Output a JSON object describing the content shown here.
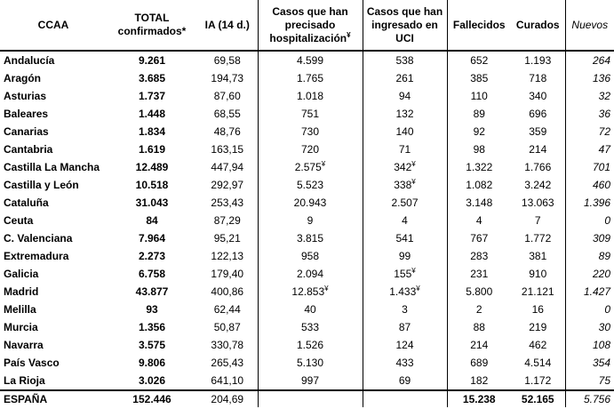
{
  "table": {
    "header": [
      "CCAA",
      "TOTAL confirmados*",
      "IA (14 d.)",
      {
        "text": "Casos que han precisado hospitalización",
        "sup": "¥"
      },
      "Casos que han ingresado en UCI",
      "Fallecidos",
      "Curados",
      "Nuevos"
    ],
    "rows": [
      [
        "Andalucía",
        "9.261",
        "69,58",
        "4.599",
        "538",
        "652",
        "1.193",
        "264"
      ],
      [
        "Aragón",
        "3.685",
        "194,73",
        "1.765",
        "261",
        "385",
        "718",
        "136"
      ],
      [
        "Asturias",
        "1.737",
        "87,60",
        "1.018",
        "94",
        "110",
        "340",
        "32"
      ],
      [
        "Baleares",
        "1.448",
        "68,55",
        "751",
        "132",
        "89",
        "696",
        "36"
      ],
      [
        "Canarias",
        "1.834",
        "48,76",
        "730",
        "140",
        "92",
        "359",
        "72"
      ],
      [
        "Cantabria",
        "1.619",
        "163,15",
        "720",
        "71",
        "98",
        "214",
        "47"
      ],
      [
        "Castilla La Mancha",
        "12.489",
        "447,94",
        {
          "text": "2.575",
          "sup": "¥"
        },
        {
          "text": "342",
          "sup": "¥"
        },
        "1.322",
        "1.766",
        "701"
      ],
      [
        "Castilla y León",
        "10.518",
        "292,97",
        "5.523",
        {
          "text": "338",
          "sup": "¥"
        },
        "1.082",
        "3.242",
        "460"
      ],
      [
        "Cataluña",
        "31.043",
        "253,43",
        "20.943",
        "2.507",
        "3.148",
        "13.063",
        "1.396"
      ],
      [
        "Ceuta",
        "84",
        "87,29",
        "9",
        "4",
        "4",
        "7",
        "0"
      ],
      [
        "C. Valenciana",
        "7.964",
        "95,21",
        "3.815",
        "541",
        "767",
        "1.772",
        "309"
      ],
      [
        "Extremadura",
        "2.273",
        "122,13",
        "958",
        "99",
        "283",
        "381",
        "89"
      ],
      [
        "Galicia",
        "6.758",
        "179,40",
        "2.094",
        {
          "text": "155",
          "sup": "¥"
        },
        "231",
        "910",
        "220"
      ],
      [
        "Madrid",
        "43.877",
        "400,86",
        {
          "text": "12.853",
          "sup": "¥"
        },
        {
          "text": "1.433",
          "sup": "¥"
        },
        "5.800",
        "21.121",
        "1.427"
      ],
      [
        "Melilla",
        "93",
        "62,44",
        "40",
        "3",
        "2",
        "16",
        "0"
      ],
      [
        "Murcia",
        "1.356",
        "50,87",
        "533",
        "87",
        "88",
        "219",
        "30"
      ],
      [
        "Navarra",
        "3.575",
        "330,78",
        "1.526",
        "124",
        "214",
        "462",
        "108"
      ],
      [
        "País Vasco",
        "9.806",
        "265,43",
        "5.130",
        "433",
        "689",
        "4.514",
        "354"
      ],
      [
        "La Rioja",
        "3.026",
        "641,10",
        "997",
        "69",
        "182",
        "1.172",
        "75"
      ]
    ],
    "total": [
      "ESPAÑA",
      "152.446",
      "204,69",
      null,
      null,
      "15.238",
      "52.165",
      "5.756"
    ]
  }
}
